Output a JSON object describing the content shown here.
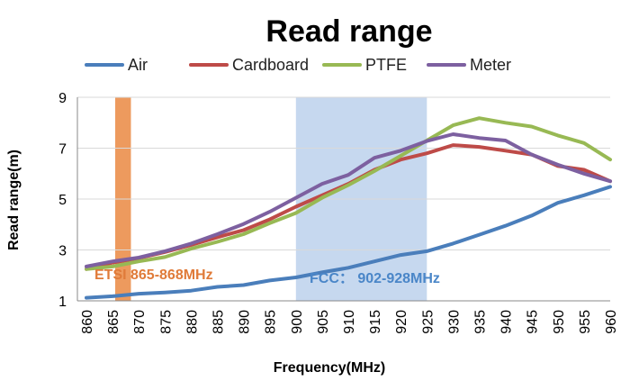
{
  "chart_data": {
    "type": "line",
    "title": "Read range",
    "xlabel": "Frequency(MHz)",
    "ylabel": "Read range(m)",
    "ylim": [
      1,
      9
    ],
    "yticks": [
      1,
      3,
      5,
      7,
      9
    ],
    "grid": "horizontal",
    "legend_position": "top",
    "x": [
      860,
      865,
      870,
      875,
      880,
      885,
      890,
      895,
      900,
      905,
      910,
      915,
      920,
      925,
      930,
      935,
      940,
      945,
      950,
      955,
      960
    ],
    "series": [
      {
        "name": "Air",
        "color": "#4a7ebb",
        "values": [
          1.12,
          1.18,
          1.28,
          1.33,
          1.4,
          1.55,
          1.62,
          1.8,
          1.92,
          2.12,
          2.3,
          2.55,
          2.8,
          2.95,
          3.25,
          3.6,
          3.95,
          4.35,
          4.85,
          5.15,
          5.48
        ]
      },
      {
        "name": "Cardboard",
        "color": "#be4b48",
        "values": [
          2.25,
          2.5,
          2.68,
          2.92,
          3.2,
          3.5,
          3.78,
          4.2,
          4.7,
          5.15,
          5.6,
          6.15,
          6.55,
          6.8,
          7.12,
          7.05,
          6.9,
          6.75,
          6.3,
          6.15,
          5.7
        ]
      },
      {
        "name": "PTFE",
        "color": "#98b954",
        "values": [
          2.25,
          2.35,
          2.55,
          2.72,
          3.05,
          3.32,
          3.62,
          4.05,
          4.45,
          5.05,
          5.55,
          6.1,
          6.7,
          7.3,
          7.9,
          8.18,
          8.0,
          7.85,
          7.5,
          7.2,
          6.55
        ]
      },
      {
        "name": "Meter",
        "color": "#7d60a0",
        "values": [
          2.35,
          2.55,
          2.7,
          2.95,
          3.25,
          3.62,
          4.02,
          4.5,
          5.05,
          5.6,
          5.95,
          6.62,
          6.9,
          7.28,
          7.55,
          7.4,
          7.3,
          6.75,
          6.35,
          6.0,
          5.7
        ]
      }
    ],
    "bands": [
      {
        "label": "ETSI 865-868MHz",
        "x_start": 865.5,
        "x_end": 868.5,
        "fill": "#ed9a5e",
        "text_color": "#e07b39"
      },
      {
        "label": "FCC： 902-928MHz",
        "x_start": 900,
        "x_end": 925,
        "fill": "#c6d8ef",
        "text_color": "#4a86c8"
      }
    ]
  }
}
